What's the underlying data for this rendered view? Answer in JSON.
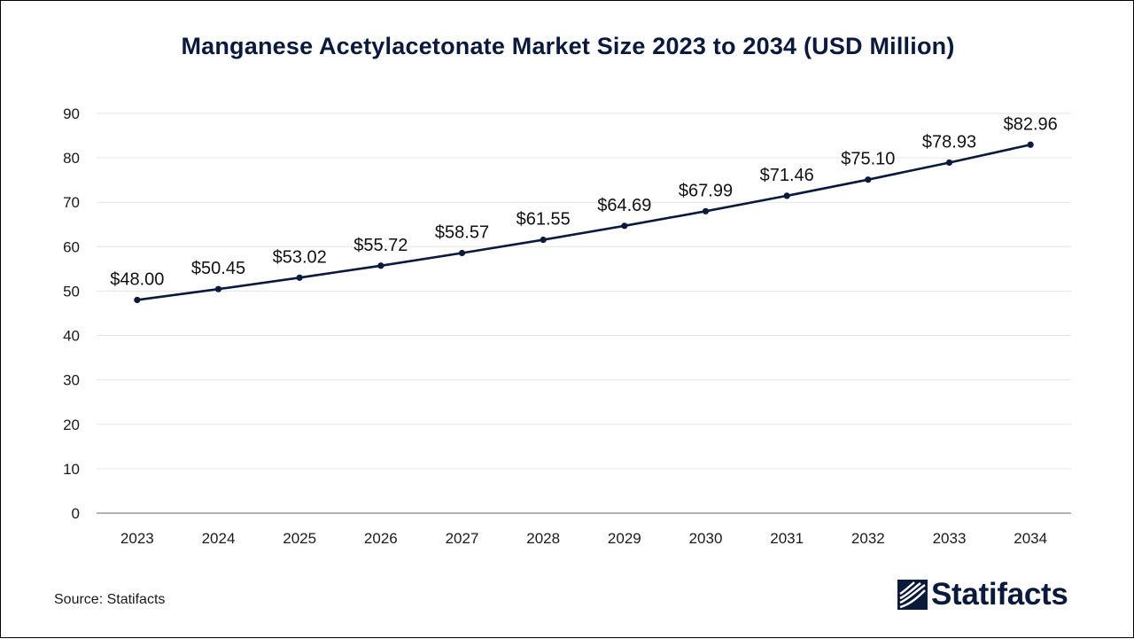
{
  "colors": {
    "line": "#0b1a3a",
    "title": "#0b1a3a",
    "grid": "#e6e6e6",
    "axis": "#9a9a9a",
    "text": "#1a1a1a"
  },
  "source_text": "Source: Statifacts",
  "logo": {
    "text": "Statifacts",
    "icon": "statifacts-logo-icon"
  },
  "chart_data": {
    "type": "line",
    "title": "Manganese Acetylacetonate Market Size 2023 to 2034 (USD Million)",
    "xlabel": "",
    "ylabel": "",
    "categories": [
      "2023",
      "2024",
      "2025",
      "2026",
      "2027",
      "2028",
      "2029",
      "2030",
      "2031",
      "2032",
      "2033",
      "2034"
    ],
    "series": [
      {
        "values": [
          48.0,
          50.45,
          53.02,
          55.72,
          58.57,
          61.55,
          64.69,
          67.99,
          71.46,
          75.1,
          78.93,
          82.96
        ],
        "labels": [
          "$48.00",
          "$50.45",
          "$53.02",
          "$55.72",
          "$58.57",
          "$61.55",
          "$64.69",
          "$67.99",
          "$71.46",
          "$75.10",
          "$78.93",
          "$82.96"
        ]
      }
    ],
    "ylim": [
      0,
      90
    ],
    "yticks": [
      0,
      10,
      20,
      30,
      40,
      50,
      60,
      70,
      80,
      90
    ],
    "grid": true,
    "legend": "none"
  }
}
